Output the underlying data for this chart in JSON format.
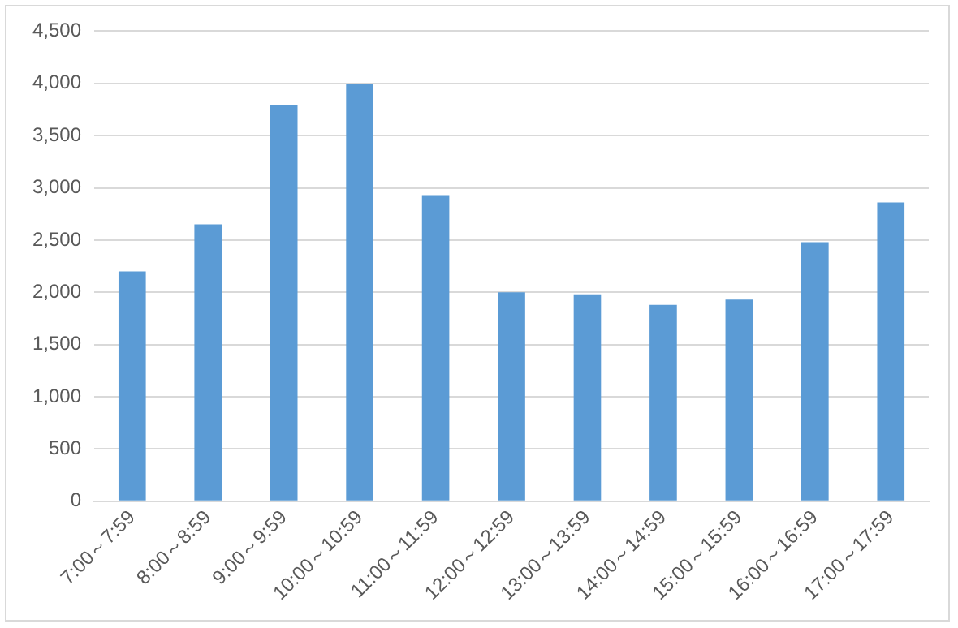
{
  "chart_data": {
    "type": "bar",
    "categories": [
      "7:00～7:59",
      "8:00～8:59",
      "9:00～9:59",
      "10:00～10:59",
      "11:00～11:59",
      "12:00～12:59",
      "13:00～13:59",
      "14:00～14:59",
      "15:00～15:59",
      "16:00～16:59",
      "17:00～17:59"
    ],
    "values": [
      2200,
      2650,
      3790,
      3990,
      2930,
      2000,
      1980,
      1880,
      1930,
      2480,
      2860
    ],
    "color": "#5b9bd5",
    "ylim": [
      0,
      4500
    ],
    "yticks": [
      {
        "value": 0,
        "label": "0"
      },
      {
        "value": 500,
        "label": "500"
      },
      {
        "value": 1000,
        "label": "1,000"
      },
      {
        "value": 1500,
        "label": "1,500"
      },
      {
        "value": 2000,
        "label": "2,000"
      },
      {
        "value": 2500,
        "label": "2,500"
      },
      {
        "value": 3000,
        "label": "3,000"
      },
      {
        "value": 3500,
        "label": "3,500"
      },
      {
        "value": 4000,
        "label": "4,000"
      },
      {
        "value": 4500,
        "label": "4,500"
      }
    ],
    "grid": "y"
  }
}
